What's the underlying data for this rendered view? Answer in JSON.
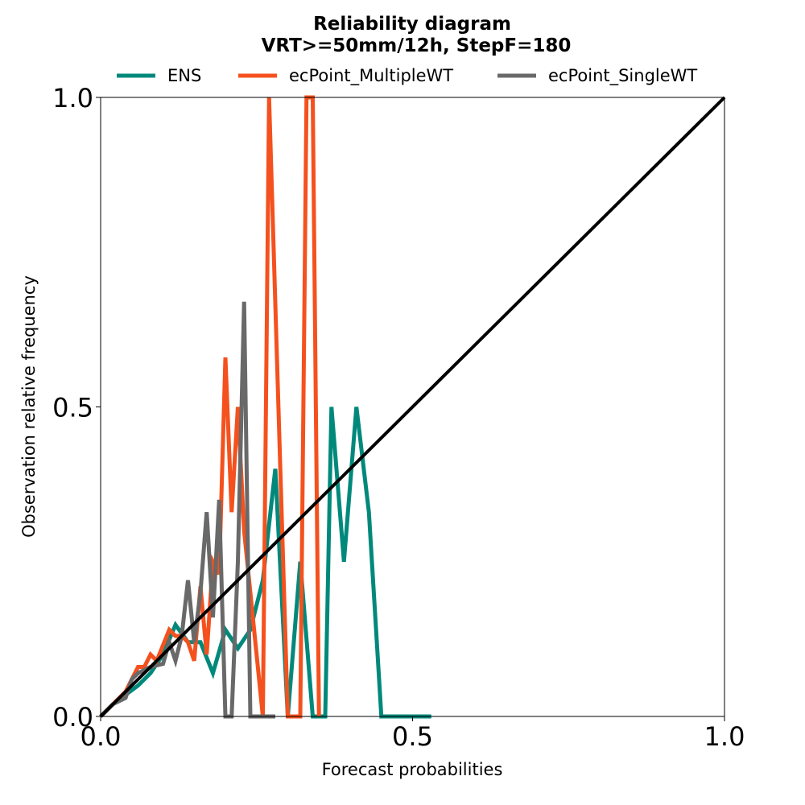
{
  "chart_data": {
    "type": "line",
    "title": "Reliability diagram",
    "subtitle": "VRT>=50mm/12h, StepF=180",
    "xlabel": "Forecast probabilities",
    "ylabel": "Observation relative frequency",
    "xlim": [
      0,
      1
    ],
    "ylim": [
      0,
      1
    ],
    "xticks": [
      "0.0",
      "0.5",
      "1.0"
    ],
    "yticks": [
      "0.0",
      "0.5",
      "1.0"
    ],
    "grid": false,
    "legend_position": "top",
    "diagonal_color": "#000000",
    "series": [
      {
        "name": "ENS",
        "color": "#00897b",
        "points": [
          [
            0,
            0
          ],
          [
            0.02,
            0.02
          ],
          [
            0.04,
            0.035
          ],
          [
            0.06,
            0.05
          ],
          [
            0.08,
            0.07
          ],
          [
            0.1,
            0.1
          ],
          [
            0.12,
            0.148
          ],
          [
            0.14,
            0.12
          ],
          [
            0.16,
            0.12
          ],
          [
            0.18,
            0.07
          ],
          [
            0.2,
            0.14
          ],
          [
            0.22,
            0.11
          ],
          [
            0.24,
            0.14
          ],
          [
            0.26,
            0.22
          ],
          [
            0.28,
            0.4
          ],
          [
            0.3,
            0.0
          ],
          [
            0.32,
            0.25
          ],
          [
            0.34,
            0.0
          ],
          [
            0.36,
            0.0
          ],
          [
            0.37,
            0.5
          ],
          [
            0.39,
            0.25
          ],
          [
            0.41,
            0.5
          ],
          [
            0.43,
            0.33
          ],
          [
            0.45,
            0.0
          ],
          [
            0.53,
            0.0
          ]
        ]
      },
      {
        "name": "ecPoint_MultipleWT",
        "color": "#f4511e",
        "points": [
          [
            0,
            0
          ],
          [
            0.02,
            0.02
          ],
          [
            0.04,
            0.04
          ],
          [
            0.06,
            0.08
          ],
          [
            0.07,
            0.08
          ],
          [
            0.08,
            0.1
          ],
          [
            0.09,
            0.09
          ],
          [
            0.11,
            0.14
          ],
          [
            0.12,
            0.13
          ],
          [
            0.13,
            0.13
          ],
          [
            0.14,
            0.12
          ],
          [
            0.15,
            0.09
          ],
          [
            0.16,
            0.21
          ],
          [
            0.17,
            0.1
          ],
          [
            0.18,
            0.25
          ],
          [
            0.19,
            0.23
          ],
          [
            0.2,
            0.58
          ],
          [
            0.21,
            0.33
          ],
          [
            0.22,
            0.5
          ],
          [
            0.23,
            0.3
          ],
          [
            0.26,
            0.0
          ],
          [
            0.27,
            1.0
          ],
          [
            0.3,
            0.0
          ],
          [
            0.32,
            0.0
          ],
          [
            0.33,
            1.0
          ],
          [
            0.34,
            1.0
          ],
          [
            0.35,
            0.0
          ]
        ]
      },
      {
        "name": "ecPoint_SingleWT",
        "color": "#696969",
        "points": [
          [
            0,
            0
          ],
          [
            0.02,
            0.02
          ],
          [
            0.04,
            0.03
          ],
          [
            0.05,
            0.06
          ],
          [
            0.06,
            0.07
          ],
          [
            0.08,
            0.08
          ],
          [
            0.1,
            0.085
          ],
          [
            0.11,
            0.12
          ],
          [
            0.12,
            0.09
          ],
          [
            0.13,
            0.13
          ],
          [
            0.14,
            0.22
          ],
          [
            0.15,
            0.12
          ],
          [
            0.16,
            0.2
          ],
          [
            0.17,
            0.33
          ],
          [
            0.18,
            0.16
          ],
          [
            0.19,
            0.35
          ],
          [
            0.2,
            0.0
          ],
          [
            0.21,
            0.0
          ],
          [
            0.22,
            0.25
          ],
          [
            0.23,
            0.67
          ],
          [
            0.24,
            0.0
          ],
          [
            0.26,
            0.0
          ],
          [
            0.28,
            0.0
          ]
        ]
      }
    ]
  }
}
